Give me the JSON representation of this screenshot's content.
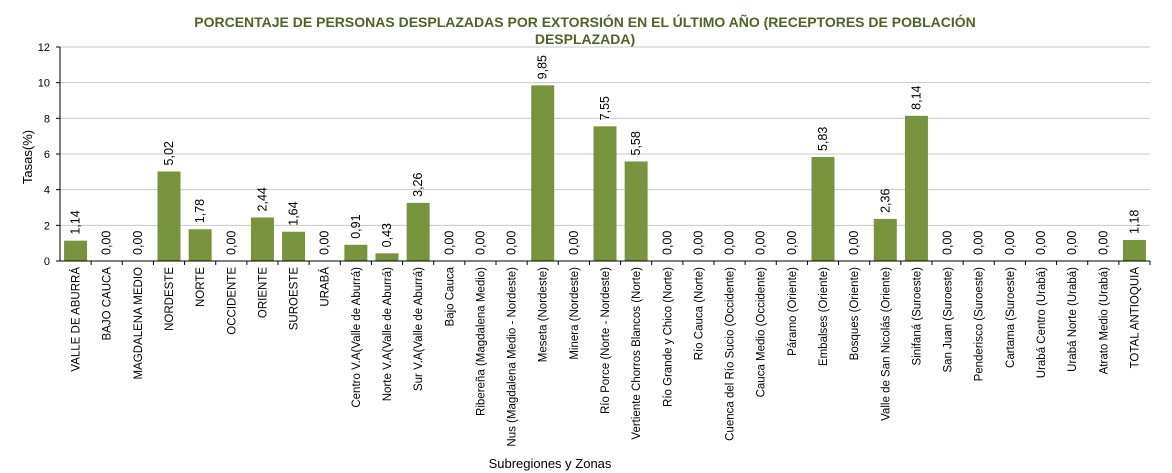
{
  "chart_data": {
    "type": "bar",
    "title": "PORCENTAJE DE PERSONAS DESPLAZADAS  POR EXTORSIÓN EN EL ÚLTIMO AÑO (RECEPTORES DE POBLACIÓN DESPLAZADA)",
    "xlabel": "Subregiones y Zonas",
    "ylabel": "Tasas(%)",
    "ylim": [
      0,
      12
    ],
    "yticks": [
      "0",
      "2",
      "4",
      "6",
      "8",
      "10",
      "12"
    ],
    "grid": true,
    "legend": "none",
    "bar_color": "#77933c",
    "categories": [
      "VALLE DE ABURRÁ",
      "BAJO CAUCA",
      "MAGDALENA MEDIO",
      "NORDESTE",
      "NORTE",
      "OCCIDENTE",
      "ORIENTE",
      "SUROESTE",
      "URABÁ",
      "Centro V.A(Valle de Aburrá)",
      "Norte V.A(Valle de Aburrá)",
      "Sur  V.A(Valle de Aburrá)",
      "Bajo Cauca",
      "Ribereña  (Magdalena Medio)",
      "Nus  (Magdalena Medio - Nordeste)",
      "Meseta  (Nordeste)",
      "Minera  (Nordeste)",
      "Río Porce  (Norte - Nordeste)",
      "Vertiente Chorros Blancos  (Norte)",
      "Río Grande y Chico  (Norte)",
      "Río Cauca  (Norte)",
      "Cuenca del Río Sucio  (Occidente)",
      "Cauca Medio  (Occidente)",
      "Páramo  (Oriente)",
      "Embalses  (Oriente)",
      "Bosques  (Oriente)",
      "Valle de San Nicolás  (Oriente)",
      "Sinifaná  (Suroeste)",
      "San Juan  (Suroeste)",
      "Penderisco  (Suroeste)",
      "Cartama  (Suroeste)",
      "Urabá Centro  (Urabá)",
      "Urabá Norte  (Urabá)",
      "Atrato Medio  (Urabá)",
      "TOTAL ANTIOQUIA"
    ],
    "values": [
      1.14,
      0,
      0,
      5.02,
      1.78,
      0,
      2.44,
      1.64,
      0,
      0.91,
      0.43,
      3.26,
      0,
      0,
      0,
      9.85,
      0,
      7.55,
      5.58,
      0,
      0,
      0,
      0,
      0,
      5.83,
      0,
      2.36,
      8.14,
      0,
      0,
      0,
      0,
      0,
      0,
      1.18
    ],
    "value_labels": [
      "1,14",
      "0,00",
      "0,00",
      "5,02",
      "1,78",
      "0,00",
      "2,44",
      "1,64",
      "0,00",
      "0,91",
      "0,43",
      "3,26",
      "0,00",
      "0,00",
      "0,00",
      "9,85",
      "0,00",
      "7,55",
      "5,58",
      "0,00",
      "0,00",
      "0,00",
      "0,00",
      "0,00",
      "5,83",
      "0,00",
      "2,36",
      "8,14",
      "0,00",
      "0,00",
      "0,00",
      "0,00",
      "0,00",
      "0,00",
      "1,18"
    ]
  }
}
